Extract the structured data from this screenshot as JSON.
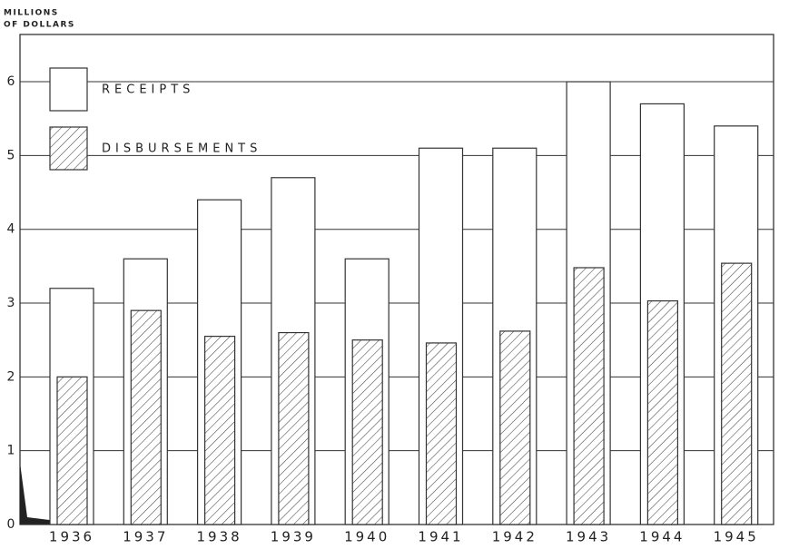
{
  "chart_data": {
    "type": "bar",
    "ylabel": [
      "MILLIONS",
      "OF DOLLARS"
    ],
    "categories": [
      "1936",
      "1937",
      "1938",
      "1939",
      "1940",
      "1941",
      "1942",
      "1943",
      "1944",
      "1945"
    ],
    "series": [
      {
        "name": "RECEIPTS",
        "color": "#ffffff",
        "hatch": false,
        "values": [
          3.2,
          3.6,
          4.4,
          4.7,
          3.6,
          5.1,
          5.1,
          6.0,
          5.7,
          5.4
        ]
      },
      {
        "name": "DISBURSEMENTS",
        "color": "#444444",
        "hatch": true,
        "values": [
          2.0,
          2.9,
          2.55,
          2.6,
          2.5,
          2.46,
          2.62,
          3.48,
          3.03,
          3.54
        ]
      }
    ],
    "ylim": [
      0,
      6.64
    ],
    "yticks": [
      0,
      1,
      2,
      3,
      4,
      5,
      6
    ],
    "grid": true,
    "legend": "upper left"
  }
}
